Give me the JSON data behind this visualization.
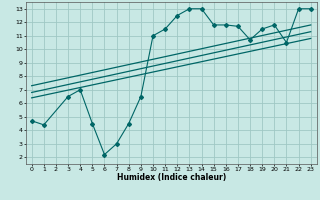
{
  "title": "",
  "xlabel": "Humidex (Indice chaleur)",
  "ylabel": "",
  "bg_color": "#c8e8e4",
  "grid_color": "#a0c8c4",
  "line_color": "#006666",
  "xlim": [
    -0.5,
    23.5
  ],
  "ylim": [
    1.5,
    13.5
  ],
  "xticks": [
    0,
    1,
    2,
    3,
    4,
    5,
    6,
    7,
    8,
    9,
    10,
    11,
    12,
    13,
    14,
    15,
    16,
    17,
    18,
    19,
    20,
    21,
    22,
    23
  ],
  "yticks": [
    2,
    3,
    4,
    5,
    6,
    7,
    8,
    9,
    10,
    11,
    12,
    13
  ],
  "scatter_x": [
    0,
    1,
    3,
    4,
    5,
    6,
    7,
    8,
    9,
    10,
    11,
    12,
    13,
    14,
    15,
    16,
    17,
    18,
    19,
    20,
    21,
    22,
    23
  ],
  "scatter_y": [
    4.7,
    4.4,
    6.5,
    7.0,
    4.5,
    2.2,
    3.0,
    4.5,
    6.5,
    11.0,
    11.5,
    12.5,
    13.0,
    13.0,
    11.8,
    11.8,
    11.7,
    10.7,
    11.5,
    11.8,
    10.5,
    13.0,
    13.0
  ],
  "line1_x": [
    0,
    23
  ],
  "line1_y": [
    6.4,
    10.8
  ],
  "line2_x": [
    0,
    23
  ],
  "line2_y": [
    6.8,
    11.3
  ],
  "line3_x": [
    0,
    23
  ],
  "line3_y": [
    7.3,
    11.8
  ]
}
